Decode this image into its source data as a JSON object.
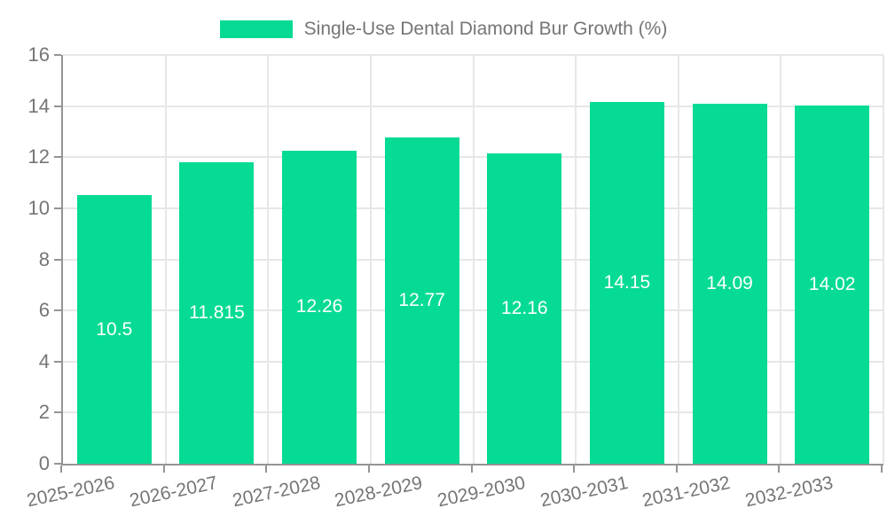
{
  "legend": {
    "label": "Single-Use Dental Diamond Bur Growth (%)"
  },
  "chart_data": {
    "type": "bar",
    "title": "Single-Use Dental Diamond Bur Growth (%)",
    "categories": [
      "2025-2026",
      "2026-2027",
      "2027-2028",
      "2028-2029",
      "2029-2030",
      "2030-2031",
      "2031-2032",
      "2032-2033"
    ],
    "values": [
      10.5,
      11.815,
      12.26,
      12.77,
      12.16,
      14.15,
      14.09,
      14.02
    ],
    "value_labels": [
      "10.5",
      "11.815",
      "12.26",
      "12.77",
      "12.16",
      "14.15",
      "14.09",
      "14.02"
    ],
    "xlabel": "",
    "ylabel": "",
    "ylim": [
      0,
      16
    ],
    "yticks": [
      0,
      2,
      4,
      6,
      8,
      10,
      12,
      14,
      16
    ],
    "grid": true,
    "legend_position": "top",
    "bar_color": "#05db94",
    "value_label_color": "#ffffff",
    "axis_color": "#949494",
    "grid_color": "#e7e7e7",
    "tick_label_color": "#757575"
  }
}
